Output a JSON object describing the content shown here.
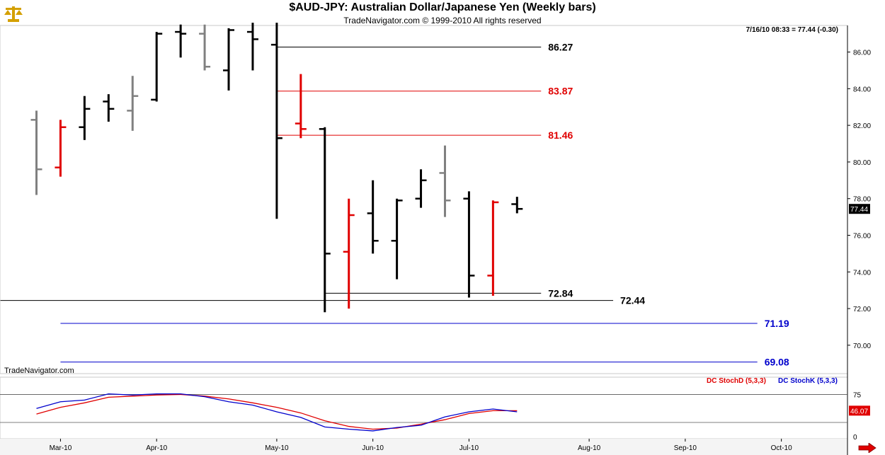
{
  "header": {
    "title": "$AUD-JPY:  Australian Dollar/Japanese Yen  (Weekly bars)",
    "subtitle": "TradeNavigator.com © 1999-2010 All rights reserved",
    "quote": "7/16/10 08:33 = 77.44 (-0.30)"
  },
  "watermark": "TradeNavigator.com",
  "colors": {
    "up": "#000000",
    "down": "#e00000",
    "neutral": "#808080",
    "stochD": "#e00000",
    "stochK": "#0000cc",
    "level_blue": "#0000cc"
  },
  "icons": {
    "logo": "scales-logo-icon",
    "next": "arrow-right-icon"
  },
  "chart_data": [
    {
      "type": "ohlc",
      "title": "$AUD-JPY:  Australian Dollar/Japanese Yen  (Weekly bars)",
      "ylim": [
        69,
        87.5
      ],
      "y_ticks": [
        "86.00",
        "84.00",
        "82.00",
        "80.00",
        "78.00",
        "76.00",
        "74.00",
        "72.00",
        "70.00"
      ],
      "x_ticks": [
        {
          "label": "Mar-10",
          "week": 1
        },
        {
          "label": "Apr-10",
          "week": 5
        },
        {
          "label": "May-10",
          "week": 10
        },
        {
          "label": "Jun-10",
          "week": 14
        },
        {
          "label": "Jul-10",
          "week": 18
        },
        {
          "label": "Aug-10",
          "week": 23
        },
        {
          "label": "Sep-10",
          "week": 27
        },
        {
          "label": "Oct-10",
          "week": 31
        }
      ],
      "bars": [
        {
          "week": 0,
          "open": 82.3,
          "high": 82.8,
          "low": 78.2,
          "close": 79.6,
          "color": "neutral"
        },
        {
          "week": 1,
          "open": 79.7,
          "high": 82.3,
          "low": 79.2,
          "close": 81.9,
          "color": "down"
        },
        {
          "week": 2,
          "open": 81.9,
          "high": 83.6,
          "low": 81.2,
          "close": 82.9,
          "color": "up"
        },
        {
          "week": 3,
          "open": 83.3,
          "high": 83.7,
          "low": 82.2,
          "close": 82.9,
          "color": "up"
        },
        {
          "week": 4,
          "open": 82.8,
          "high": 84.7,
          "low": 81.7,
          "close": 83.6,
          "color": "neutral"
        },
        {
          "week": 5,
          "open": 83.4,
          "high": 87.1,
          "low": 83.3,
          "close": 87.0,
          "color": "up"
        },
        {
          "week": 6,
          "open": 87.1,
          "high": 87.5,
          "low": 85.7,
          "close": 87.0,
          "color": "up"
        },
        {
          "week": 7,
          "open": 87.0,
          "high": 87.5,
          "low": 85.0,
          "close": 85.2,
          "color": "neutral"
        },
        {
          "week": 8,
          "open": 85.0,
          "high": 87.3,
          "low": 83.9,
          "close": 87.2,
          "color": "up"
        },
        {
          "week": 9,
          "open": 87.1,
          "high": 87.6,
          "low": 85.0,
          "close": 86.7,
          "color": "up"
        },
        {
          "week": 10,
          "open": 86.4,
          "high": 87.6,
          "low": 76.9,
          "close": 81.3,
          "color": "up"
        },
        {
          "week": 11,
          "open": 82.1,
          "high": 84.8,
          "low": 81.3,
          "close": 81.8,
          "color": "down"
        },
        {
          "week": 12,
          "open": 81.8,
          "high": 81.9,
          "low": 71.8,
          "close": 75.0,
          "color": "up"
        },
        {
          "week": 13,
          "open": 75.1,
          "high": 78.0,
          "low": 72.0,
          "close": 77.1,
          "color": "down"
        },
        {
          "week": 14,
          "open": 77.2,
          "high": 79.0,
          "low": 75.0,
          "close": 75.7,
          "color": "up"
        },
        {
          "week": 15,
          "open": 75.7,
          "high": 78.0,
          "low": 73.6,
          "close": 77.9,
          "color": "up"
        },
        {
          "week": 16,
          "open": 78.0,
          "high": 79.6,
          "low": 77.5,
          "close": 79.0,
          "color": "up"
        },
        {
          "week": 17,
          "open": 79.4,
          "high": 80.9,
          "low": 77.0,
          "close": 77.9,
          "color": "neutral"
        },
        {
          "week": 18,
          "open": 78.0,
          "high": 78.4,
          "low": 72.6,
          "close": 73.8,
          "color": "up"
        },
        {
          "week": 19,
          "open": 73.8,
          "high": 77.9,
          "low": 72.7,
          "close": 77.8,
          "color": "down"
        },
        {
          "week": 20,
          "open": 77.7,
          "high": 78.1,
          "low": 77.2,
          "close": 77.44,
          "color": "up"
        }
      ],
      "levels": [
        {
          "label": "86.27",
          "value": 86.27,
          "color": "#000000",
          "from_week": 10,
          "to_week": 21
        },
        {
          "label": "83.87",
          "value": 83.87,
          "color": "#e00000",
          "from_week": 10,
          "to_week": 21
        },
        {
          "label": "81.46",
          "value": 81.46,
          "color": "#e00000",
          "from_week": 10,
          "to_week": 21
        },
        {
          "label": "72.84",
          "value": 72.84,
          "color": "#000000",
          "from_week": 12,
          "to_week": 21
        },
        {
          "label": "72.44",
          "value": 72.44,
          "color": "#000000",
          "from_week": -1.5,
          "to_week": 24
        },
        {
          "label": "71.19",
          "value": 71.19,
          "color": "#0000cc",
          "from_week": 1,
          "to_week": 30
        },
        {
          "label": "69.08",
          "value": 69.08,
          "color": "#0000cc",
          "from_week": 1,
          "to_week": 30
        }
      ],
      "last_price_label": "77.44"
    },
    {
      "type": "line",
      "ylim": [
        -10,
        100
      ],
      "y_ticks": [
        "75",
        "0"
      ],
      "reference_lines": [
        75,
        25
      ],
      "last_value_label": "46.07",
      "series": [
        {
          "name": "DC StochD (5,3,3)",
          "color": "#e00000",
          "x": [
            0,
            1,
            2,
            3,
            4,
            5,
            6,
            7,
            8,
            9,
            10,
            11,
            12,
            13,
            14,
            15,
            16,
            17,
            18,
            19,
            20
          ],
          "y": [
            40,
            52,
            60,
            70,
            72,
            74,
            75,
            72,
            67,
            60,
            52,
            42,
            28,
            18,
            13,
            15,
            22,
            30,
            41,
            46,
            46.07
          ]
        },
        {
          "name": "DC StochK (5,3,3)",
          "color": "#0000cc",
          "x": [
            0,
            1,
            2,
            3,
            4,
            5,
            6,
            7,
            8,
            9,
            10,
            11,
            12,
            13,
            14,
            15,
            16,
            17,
            18,
            19,
            20
          ],
          "y": [
            50,
            62,
            65,
            76,
            74,
            76,
            76,
            71,
            62,
            56,
            44,
            34,
            17,
            13,
            10,
            16,
            20,
            35,
            44,
            49,
            44
          ]
        }
      ]
    }
  ]
}
